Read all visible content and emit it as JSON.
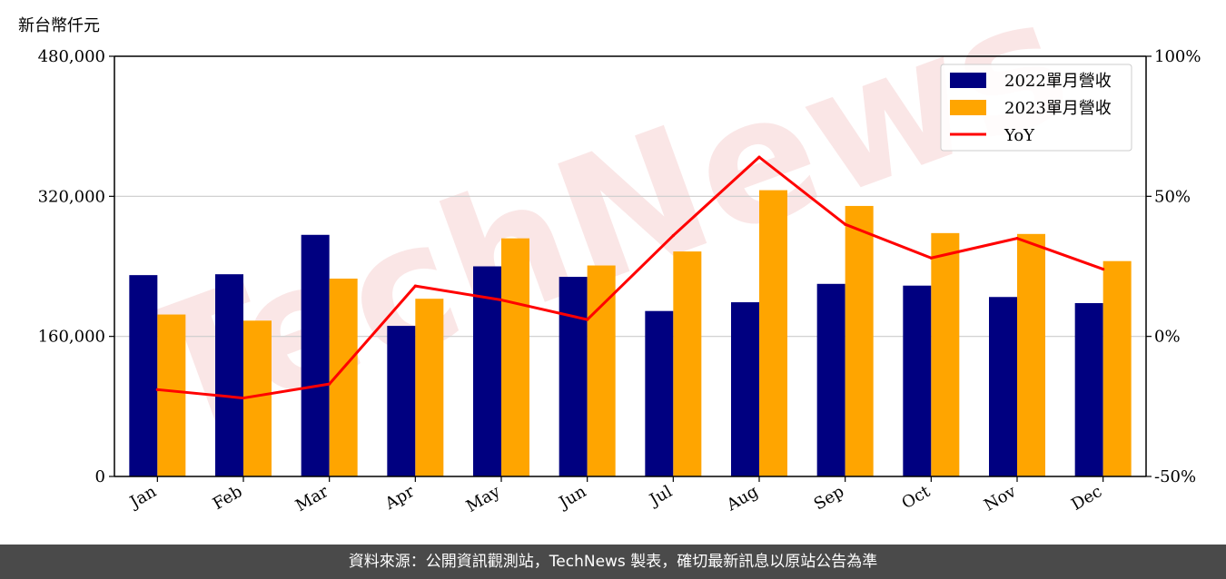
{
  "chart_data": {
    "type": "bar",
    "unit_label": "新台幣仟元",
    "watermark": "TechNews",
    "categories": [
      "Jan",
      "Feb",
      "Mar",
      "Apr",
      "May",
      "Jun",
      "Jul",
      "Aug",
      "Sep",
      "Oct",
      "Nov",
      "Dec"
    ],
    "series": [
      {
        "name": "2022單月營收",
        "color": "#000080",
        "values": [
          230000,
          231000,
          276000,
          172000,
          240000,
          228000,
          189000,
          199000,
          220000,
          218000,
          205000,
          198000
        ]
      },
      {
        "name": "2023單月營收",
        "color": "#FFA500",
        "values": [
          185000,
          178000,
          226000,
          203000,
          272000,
          241000,
          257000,
          327000,
          309000,
          278000,
          277000,
          246000
        ]
      }
    ],
    "line_series": {
      "name": "YoY",
      "color": "#FF0000",
      "values": [
        -19,
        -22,
        -17,
        18,
        13,
        6,
        36,
        64,
        40,
        28,
        35,
        24
      ]
    },
    "ylim": [
      0,
      480000
    ],
    "yticks": [
      "0",
      "160,000",
      "320,000",
      "480,000"
    ],
    "yticks_values": [
      0,
      160000,
      320000,
      480000
    ],
    "y2lim": [
      -50,
      100
    ],
    "y2ticks": [
      "-50%",
      "0%",
      "50%",
      "100%"
    ],
    "y2ticks_values": [
      -50,
      0,
      50,
      100
    ],
    "grid": true,
    "legend_position": "top-right"
  },
  "footer": {
    "text": "資料來源：公開資訊觀測站，TechNews 製表，確切最新訊息以原站公告為準"
  }
}
